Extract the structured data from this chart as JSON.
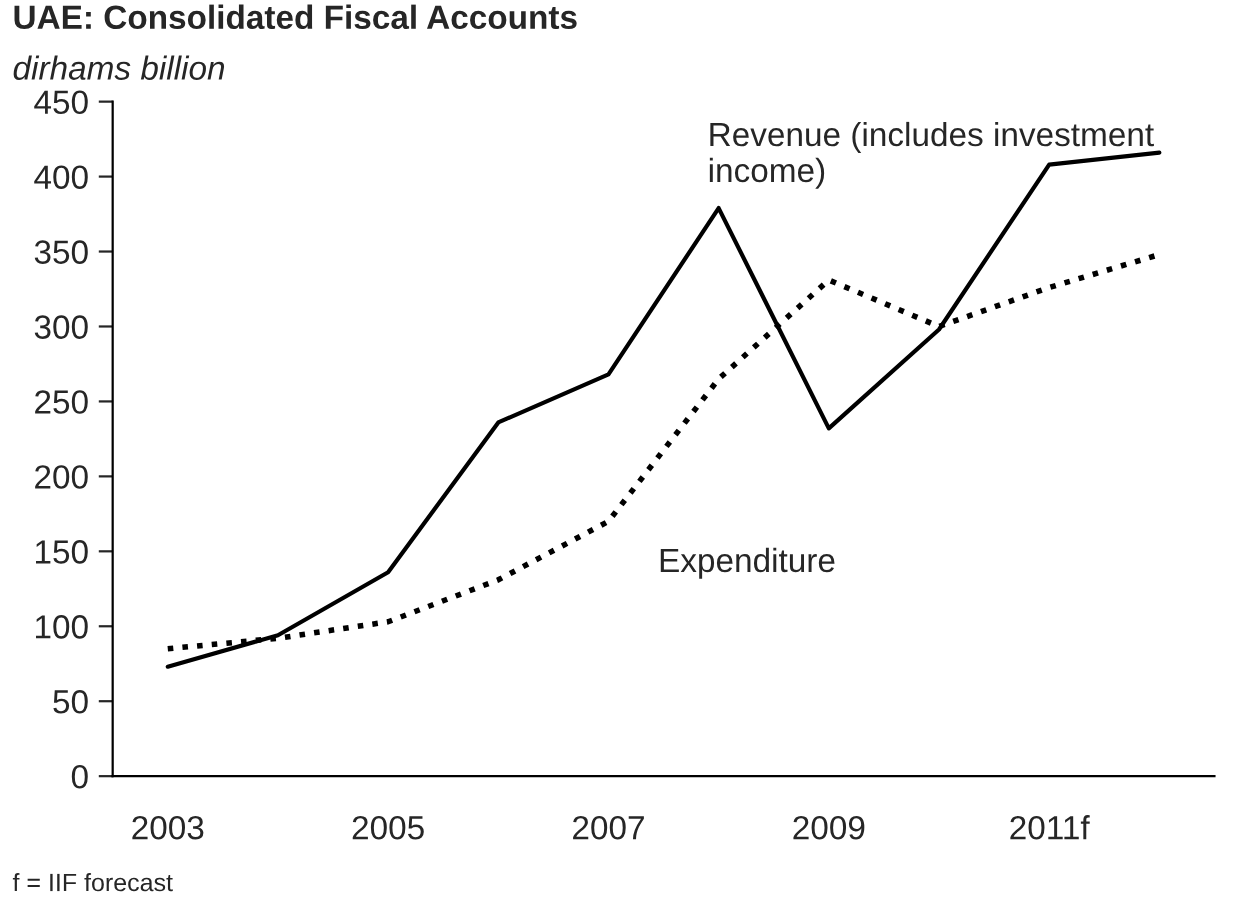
{
  "chart_data": {
    "type": "line",
    "title": "UAE: Consolidated Fiscal Accounts",
    "subtitle": "dirhams billion",
    "categories": [
      "2003",
      null,
      "2005",
      null,
      "2007",
      null,
      "2009",
      null,
      "2011f",
      null
    ],
    "series": [
      {
        "name": "Revenue (includes investment income)",
        "color": "#000000",
        "line_style": "solid",
        "values": [
          73,
          94,
          136,
          236,
          268,
          379,
          232,
          298,
          408,
          416
        ]
      },
      {
        "name": "Expenditure",
        "color": "#000000",
        "line_style": "dotted",
        "values": [
          85,
          92,
          103,
          131,
          170,
          265,
          331,
          300,
          326,
          348
        ]
      }
    ],
    "ylim": [
      0,
      450
    ],
    "yticks": [
      0,
      50,
      100,
      150,
      200,
      250,
      300,
      350,
      400,
      450
    ],
    "grid": false,
    "annotations": [
      "f = IIF forecast"
    ]
  }
}
